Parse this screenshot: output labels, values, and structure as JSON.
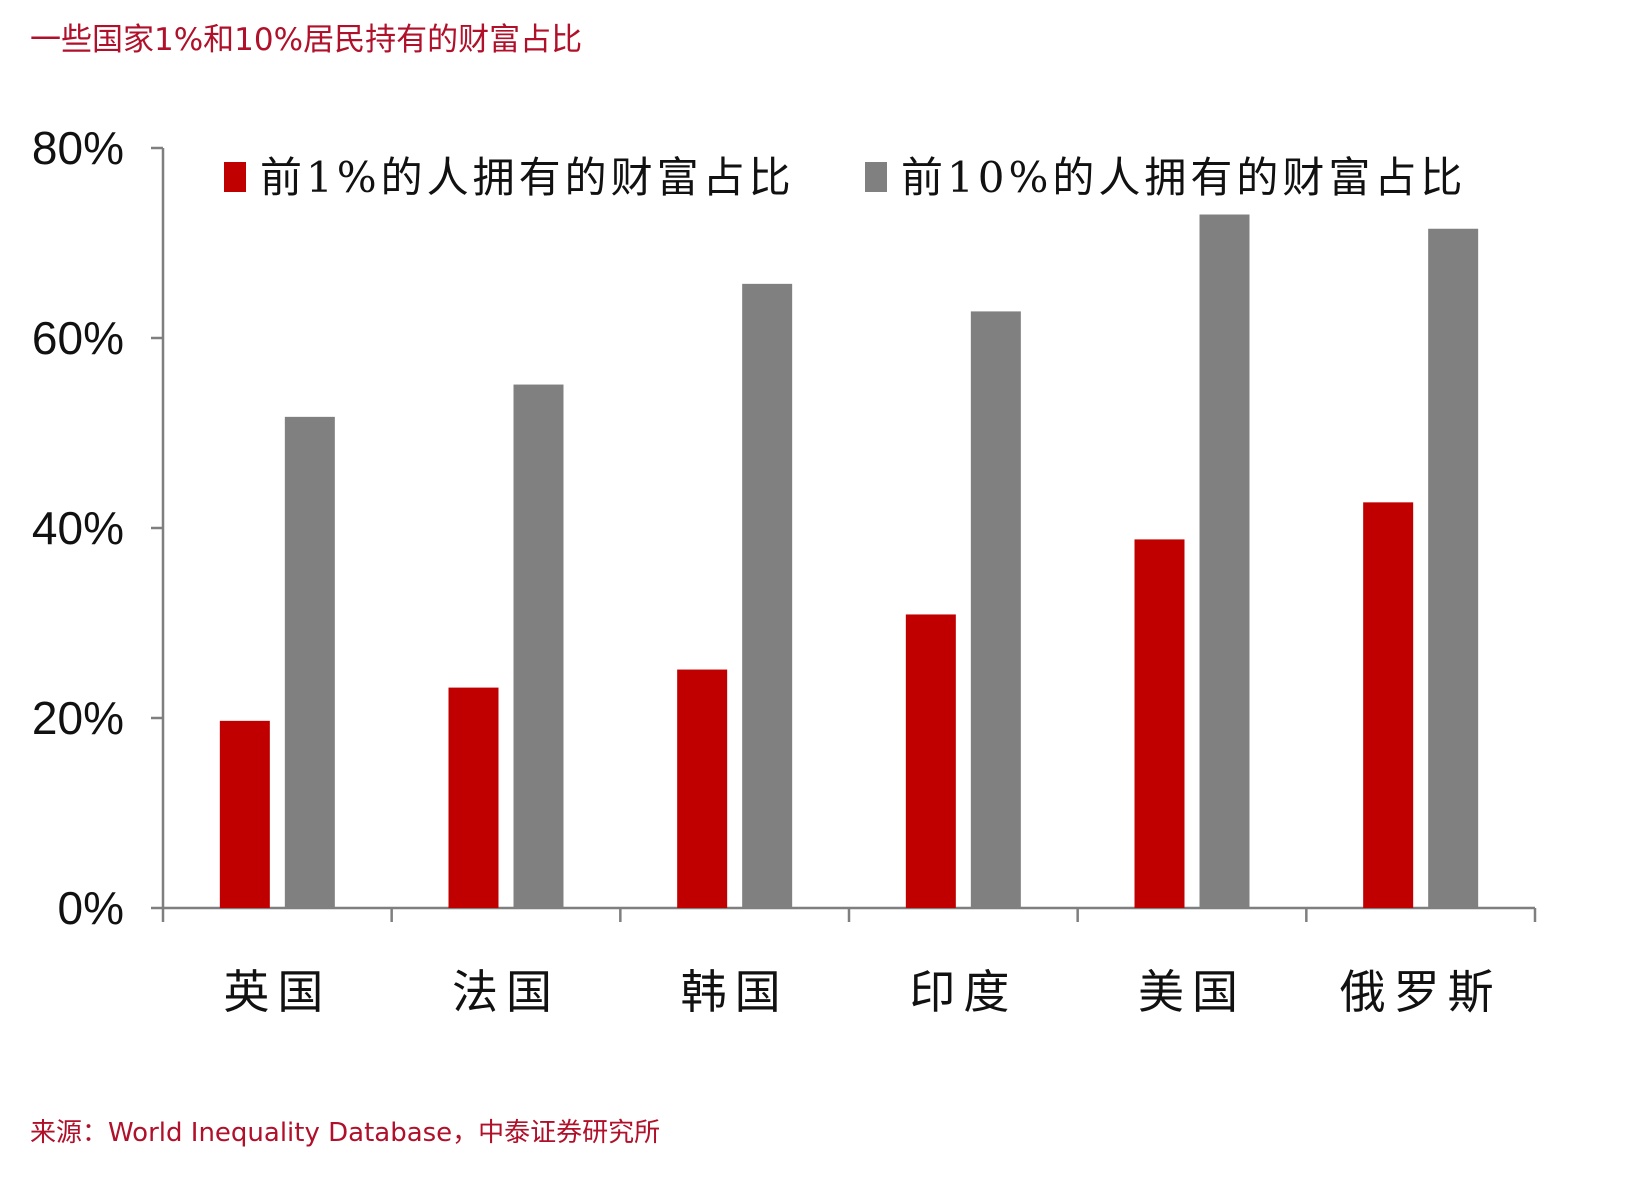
{
  "header": {
    "title": "一些国家1%和10%居民持有的财富占比"
  },
  "footer": {
    "source": "来源：World Inequality Database，中泰证券研究所"
  },
  "chart_data": {
    "type": "bar",
    "categories": [
      "英国",
      "法国",
      "韩国",
      "印度",
      "美国",
      "俄罗斯"
    ],
    "series": [
      {
        "name": "前1%的人拥有的财富占比",
        "color": "#c00000",
        "values": [
          19.7,
          23.2,
          25.1,
          30.9,
          38.8,
          42.7
        ]
      },
      {
        "name": "前10%的人拥有的财富占比",
        "color": "#808080",
        "values": [
          51.7,
          55.1,
          65.7,
          62.8,
          73.0,
          71.5
        ]
      }
    ],
    "ylim": [
      0,
      80
    ],
    "yticks": [
      "0%",
      "20%",
      "40%",
      "60%",
      "80%"
    ],
    "ytick_values": [
      0,
      20,
      40,
      60,
      80
    ],
    "grid": false,
    "legend_position": "top"
  }
}
